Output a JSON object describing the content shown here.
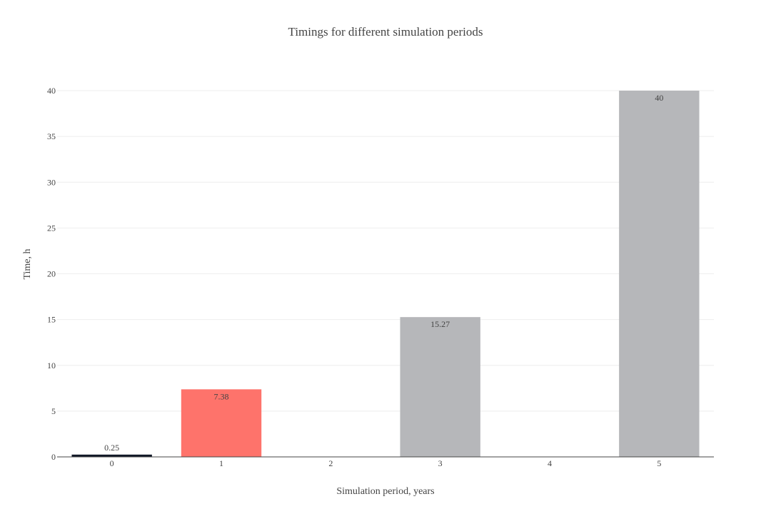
{
  "chart_data": {
    "type": "bar",
    "title": "Timings for different simulation periods",
    "xlabel": "Simulation period, years",
    "ylabel": "Time, h",
    "x": [
      0,
      1,
      3,
      5
    ],
    "values": [
      0.25,
      7.38,
      15.27,
      40
    ],
    "value_labels": [
      "0.25",
      "7.38",
      "15.27",
      "40"
    ],
    "bar_colors": [
      "#111827",
      "#fe736b",
      "#b6b7ba",
      "#b6b7ba"
    ],
    "label_position": [
      "outside",
      "inside",
      "inside",
      "inside"
    ],
    "xlim": [
      -0.5,
      5.5
    ],
    "ylim": [
      0,
      40
    ],
    "xticks": [
      "0",
      "1",
      "2",
      "3",
      "4",
      "5"
    ],
    "yticks": [
      "0",
      "5",
      "10",
      "15",
      "20",
      "25",
      "30",
      "35",
      "40"
    ],
    "grid": true,
    "legend": false
  }
}
